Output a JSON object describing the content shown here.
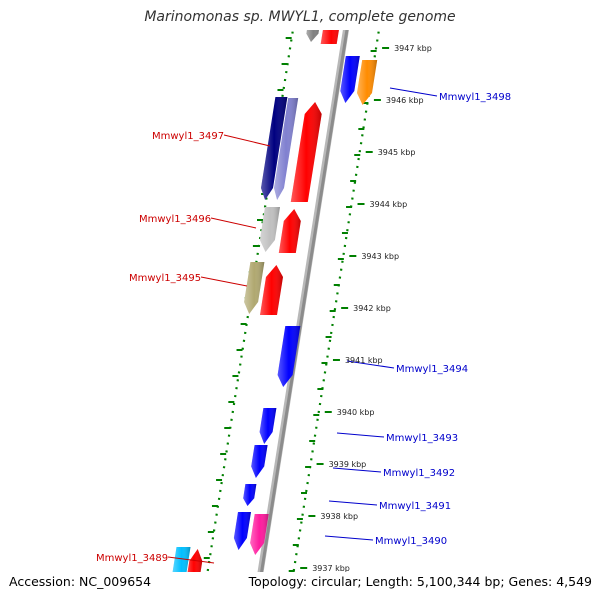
{
  "title": "Marinomonas sp. MWYL1, complete genome",
  "accession": "Accession: NC_009654",
  "topology": "Topology: circular; Length: 5,100,344 bp; Genes: 4,549",
  "colors": {
    "backbone": "#8c8c8c",
    "tick_green": "#008000",
    "label_red": "#cc0000",
    "label_blue": "#0000cc",
    "blue": "#0000ff",
    "navy": "#000080",
    "lavender": "#8080d0",
    "red": "#ff0000",
    "gray": "#808080",
    "silver": "#c0c0c0",
    "khaki": "#b0a870",
    "orange": "#ff8c00",
    "pink": "#ff1a9e",
    "cyan": "#00bfff"
  },
  "kbp_ticks": [
    "3947 kbp",
    "3946 kbp",
    "3945 kbp",
    "3944 kbp",
    "3943 kbp",
    "3942 kbp",
    "3941 kbp",
    "3940 kbp",
    "3939 kbp",
    "3938 kbp",
    "3937 kbp"
  ],
  "gene_labels": [
    {
      "id": "Mmwyl1_3498",
      "side": "right"
    },
    {
      "id": "Mmwyl1_3497",
      "side": "left"
    },
    {
      "id": "Mmwyl1_3496",
      "side": "left"
    },
    {
      "id": "Mmwyl1_3495",
      "side": "left"
    },
    {
      "id": "Mmwyl1_3494",
      "side": "right"
    },
    {
      "id": "Mmwyl1_3493",
      "side": "right"
    },
    {
      "id": "Mmwyl1_3492",
      "side": "right"
    },
    {
      "id": "Mmwyl1_3491",
      "side": "right"
    },
    {
      "id": "Mmwyl1_3490",
      "side": "right"
    },
    {
      "id": "Mmwyl1_3489",
      "side": "left"
    }
  ],
  "features": [
    {
      "name": "gene-top-gray",
      "color": "gray",
      "strand": "-"
    },
    {
      "name": "gene-top-red",
      "color": "red",
      "strand": "+"
    },
    {
      "name": "gene-3498-blue",
      "color": "blue",
      "strand": "-"
    },
    {
      "name": "gene-3498-orange",
      "color": "orange",
      "strand": "-"
    },
    {
      "name": "gene-3497-navy",
      "color": "navy",
      "strand": "-"
    },
    {
      "name": "gene-3497-lavender",
      "color": "lavender",
      "strand": "-"
    },
    {
      "name": "gene-3497-red",
      "color": "red",
      "strand": "+"
    },
    {
      "name": "gene-3496-silver",
      "color": "silver",
      "strand": "-"
    },
    {
      "name": "gene-3496-red",
      "color": "red",
      "strand": "+"
    },
    {
      "name": "gene-3495-khaki",
      "color": "khaki",
      "strand": "-"
    },
    {
      "name": "gene-3495-red",
      "color": "red",
      "strand": "+"
    },
    {
      "name": "gene-3494-blue",
      "color": "blue",
      "strand": "-"
    },
    {
      "name": "gene-3493-blue",
      "color": "blue",
      "strand": "-"
    },
    {
      "name": "gene-3492-blue",
      "color": "blue",
      "strand": "-"
    },
    {
      "name": "gene-3491-blue",
      "color": "blue",
      "strand": "-"
    },
    {
      "name": "gene-3490-blue",
      "color": "blue",
      "strand": "-"
    },
    {
      "name": "gene-3490-pink",
      "color": "pink",
      "strand": "-"
    },
    {
      "name": "gene-3489-cyan",
      "color": "cyan",
      "strand": "-"
    },
    {
      "name": "gene-3489-red",
      "color": "red",
      "strand": "+"
    }
  ]
}
